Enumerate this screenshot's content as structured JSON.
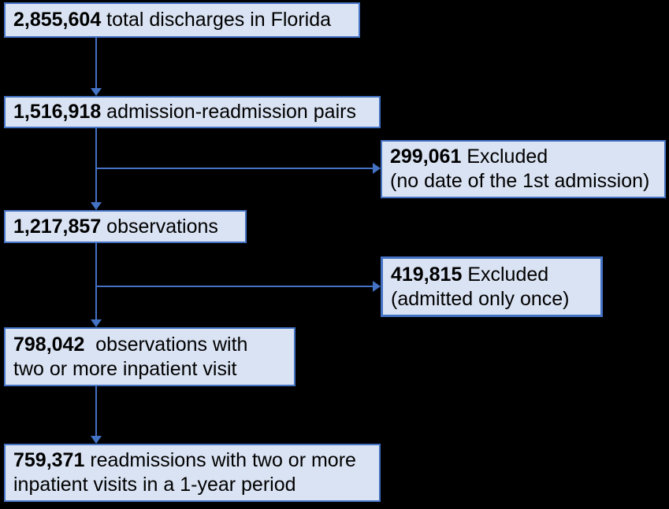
{
  "diagram": {
    "title": "Patient flow / exclusion diagram for Florida discharges",
    "colors": {
      "background": "#000000",
      "box_fill": "#dae3f3",
      "box_border": "#4472c4",
      "arrow": "#4472c4",
      "text": "#000000"
    },
    "boxes": {
      "b1": {
        "number": "2,855,604",
        "rest": " total discharges in Florida"
      },
      "b2": {
        "number": "1,516,918",
        "rest": " admission-readmission pairs"
      },
      "b3": {
        "number": "299,061",
        "rest": " Excluded",
        "line2": "(no date of the 1st admission)"
      },
      "b4": {
        "number": "1,217,857",
        "rest": " observations"
      },
      "b5": {
        "number": "419,815",
        "rest": " Excluded",
        "line2": "(admitted only once)"
      },
      "b6": {
        "number": "798,042",
        "rest": "  observations with",
        "line2": "two or more inpatient visit"
      },
      "b7": {
        "number": "759,371",
        "rest": " readmissions with two or more",
        "line2": "inpatient visits in a 1-year period"
      }
    },
    "edges": [
      {
        "from": "b1",
        "to": "b2",
        "type": "down-arrow"
      },
      {
        "from": "b2",
        "to": "b4",
        "type": "down-arrow"
      },
      {
        "from": "b2-b4-connector",
        "to": "b3",
        "type": "right-branch-arrow"
      },
      {
        "from": "b4",
        "to": "b6",
        "type": "down-arrow"
      },
      {
        "from": "b4-b6-connector",
        "to": "b5",
        "type": "right-branch-arrow"
      },
      {
        "from": "b6",
        "to": "b7",
        "type": "down-arrow"
      }
    ]
  }
}
